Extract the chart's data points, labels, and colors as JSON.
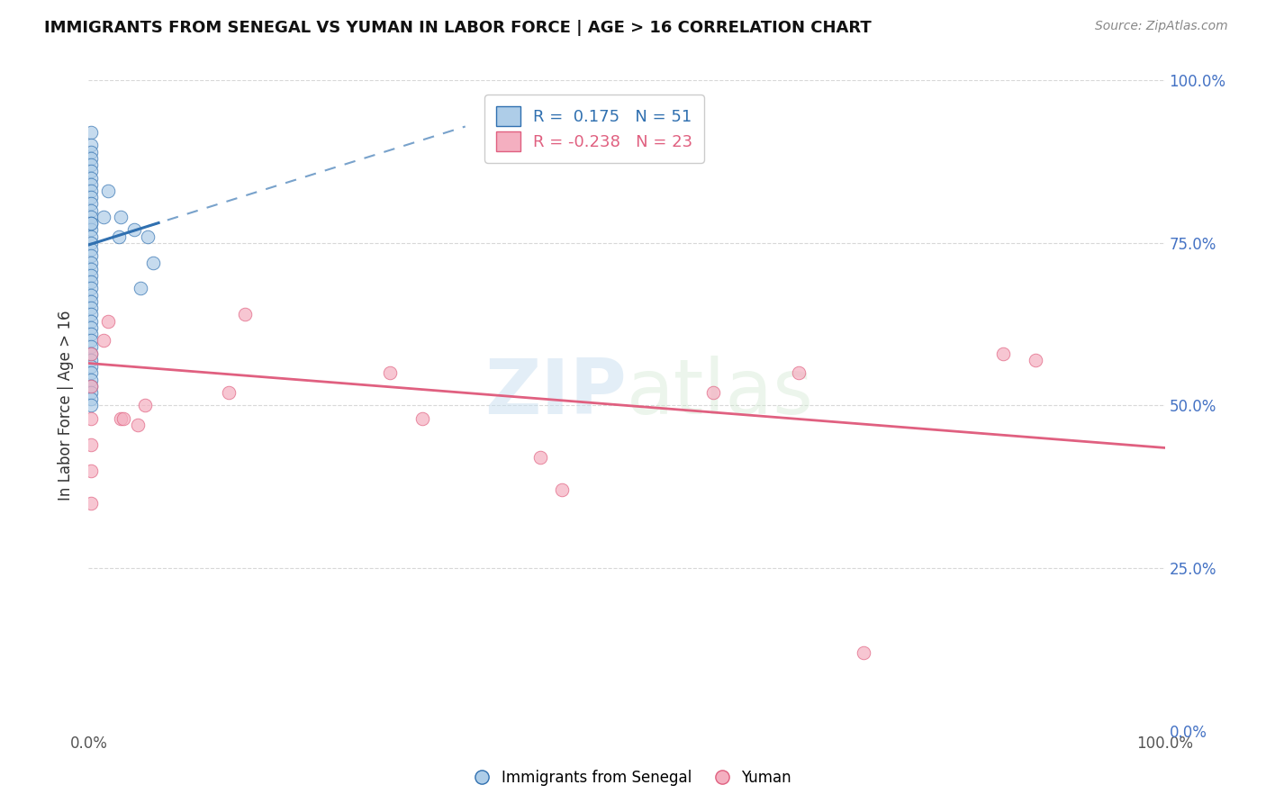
{
  "title": "IMMIGRANTS FROM SENEGAL VS YUMAN IN LABOR FORCE | AGE > 16 CORRELATION CHART",
  "source": "Source: ZipAtlas.com",
  "ylabel": "In Labor Force | Age > 16",
  "xlim": [
    0.0,
    1.0
  ],
  "ylim": [
    0.0,
    1.0
  ],
  "x_tick_labels": [
    "0.0%",
    "100.0%"
  ],
  "y_tick_labels_right": [
    "0.0%",
    "25.0%",
    "50.0%",
    "75.0%",
    "100.0%"
  ],
  "blue_R": 0.175,
  "pink_R": -0.238,
  "blue_N": 51,
  "pink_N": 23,
  "blue_color": "#aecde8",
  "pink_color": "#f4afc0",
  "blue_line_color": "#3070b0",
  "pink_line_color": "#e06080",
  "blue_scatter_x": [
    0.002,
    0.002,
    0.002,
    0.002,
    0.002,
    0.002,
    0.002,
    0.002,
    0.002,
    0.002,
    0.002,
    0.002,
    0.002,
    0.002,
    0.002,
    0.002,
    0.002,
    0.002,
    0.002,
    0.002,
    0.002,
    0.002,
    0.002,
    0.002,
    0.002,
    0.002,
    0.002,
    0.002,
    0.002,
    0.002,
    0.002,
    0.002,
    0.002,
    0.002,
    0.002,
    0.002,
    0.002,
    0.002,
    0.002,
    0.002,
    0.002,
    0.002,
    0.002,
    0.014,
    0.018,
    0.028,
    0.03,
    0.042,
    0.048,
    0.055,
    0.06
  ],
  "blue_scatter_y": [
    0.92,
    0.9,
    0.89,
    0.88,
    0.87,
    0.86,
    0.85,
    0.84,
    0.83,
    0.82,
    0.81,
    0.8,
    0.79,
    0.78,
    0.77,
    0.76,
    0.75,
    0.74,
    0.73,
    0.72,
    0.71,
    0.7,
    0.69,
    0.68,
    0.67,
    0.66,
    0.65,
    0.64,
    0.63,
    0.62,
    0.61,
    0.6,
    0.59,
    0.58,
    0.57,
    0.56,
    0.55,
    0.54,
    0.53,
    0.52,
    0.51,
    0.5,
    0.78,
    0.79,
    0.83,
    0.76,
    0.79,
    0.77,
    0.68,
    0.76,
    0.72
  ],
  "pink_scatter_x": [
    0.002,
    0.002,
    0.002,
    0.002,
    0.002,
    0.002,
    0.014,
    0.018,
    0.03,
    0.032,
    0.046,
    0.052,
    0.13,
    0.145,
    0.28,
    0.31,
    0.42,
    0.44,
    0.58,
    0.66,
    0.72,
    0.85,
    0.88
  ],
  "pink_scatter_y": [
    0.58,
    0.53,
    0.48,
    0.44,
    0.4,
    0.35,
    0.6,
    0.63,
    0.48,
    0.48,
    0.47,
    0.5,
    0.52,
    0.64,
    0.55,
    0.48,
    0.42,
    0.37,
    0.52,
    0.55,
    0.12,
    0.58,
    0.57
  ],
  "watermark_line1": "ZIP",
  "watermark_line2": "atlas",
  "background_color": "#ffffff",
  "grid_color": "#d8d8d8",
  "blue_line_intercept": 0.747,
  "blue_line_slope": 0.52,
  "pink_line_intercept": 0.565,
  "pink_line_slope": -0.13
}
